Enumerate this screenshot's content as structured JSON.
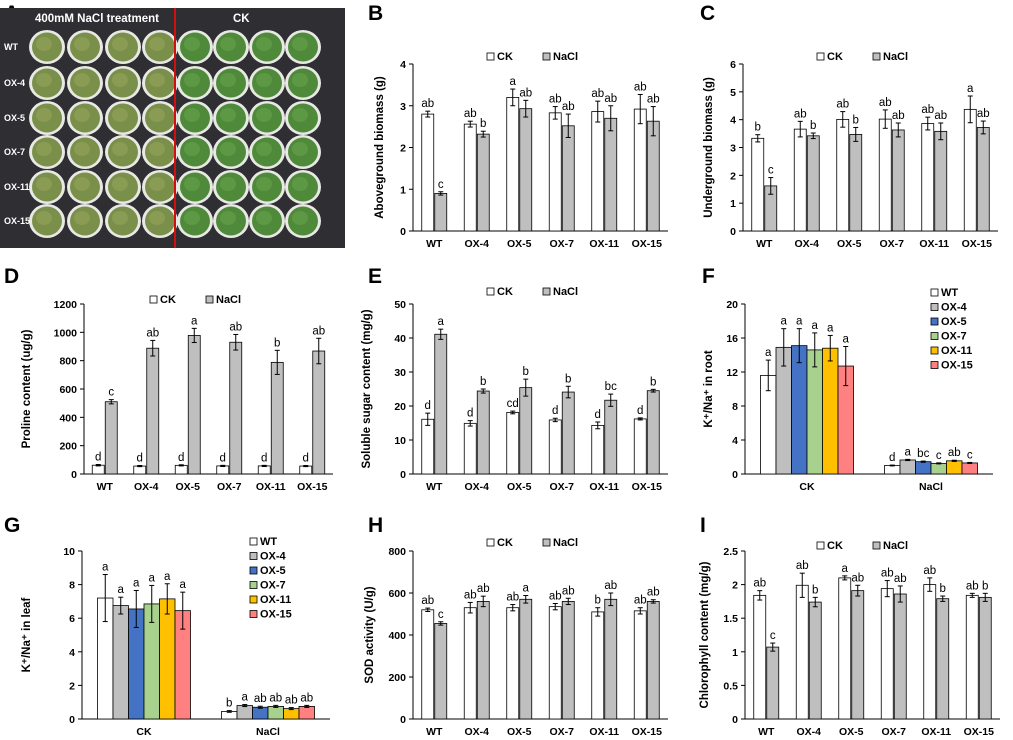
{
  "figure": {
    "panel_a": {
      "label": "A",
      "title_left": "400mM NaCl treatment",
      "title_right": "CK",
      "rows": [
        "WT",
        "OX-4",
        "OX-5",
        "OX-7",
        "OX-11",
        "OX-15"
      ]
    }
  },
  "colors": {
    "ck": "#ffffff",
    "nacl": "#bfbfbf",
    "line_colors": [
      "#ffffff",
      "#bfbfbf",
      "#4472c4",
      "#a9d18e",
      "#ffc000",
      "#ff8080"
    ],
    "photo_bg": "#2e2e33",
    "grass": "#5f8a3f",
    "red_divider": "#d01010"
  },
  "chart_data": [
    {
      "id": "B",
      "label": "B",
      "type": "bar",
      "ylabel": "Aboveground biomass (g)",
      "ylim": [
        0,
        4
      ],
      "yticks": [
        0,
        1,
        2,
        3,
        4
      ],
      "categories": [
        "WT",
        "OX-4",
        "OX-5",
        "OX-7",
        "OX-11",
        "OX-15"
      ],
      "series": [
        {
          "name": "CK",
          "values": [
            2.8,
            2.56,
            3.2,
            2.83,
            2.86,
            2.92
          ],
          "errors": [
            0.07,
            0.07,
            0.2,
            0.15,
            0.25,
            0.35
          ],
          "letters": [
            "ab",
            "ab",
            "a",
            "ab",
            "ab",
            "ab"
          ]
        },
        {
          "name": "NaCl",
          "values": [
            0.9,
            2.32,
            2.93,
            2.52,
            2.7,
            2.63
          ],
          "errors": [
            0.04,
            0.07,
            0.2,
            0.28,
            0.3,
            0.35
          ],
          "letters": [
            "c",
            "b",
            "ab",
            "ab",
            "ab",
            "ab"
          ]
        }
      ]
    },
    {
      "id": "C",
      "label": "C",
      "type": "bar",
      "ylabel": "Underground biomass (g)",
      "ylim": [
        0,
        6
      ],
      "yticks": [
        0,
        1,
        2,
        3,
        4,
        5,
        6
      ],
      "categories": [
        "WT",
        "OX-4",
        "OX-5",
        "OX-7",
        "OX-11",
        "OX-15"
      ],
      "series": [
        {
          "name": "CK",
          "values": [
            3.33,
            3.66,
            4.01,
            4.02,
            3.86,
            4.37
          ],
          "errors": [
            0.13,
            0.28,
            0.28,
            0.33,
            0.23,
            0.48
          ],
          "letters": [
            "b",
            "ab",
            "ab",
            "ab",
            "ab",
            "a"
          ]
        },
        {
          "name": "NaCl",
          "values": [
            1.62,
            3.42,
            3.47,
            3.63,
            3.58,
            3.72
          ],
          "errors": [
            0.3,
            0.1,
            0.25,
            0.25,
            0.3,
            0.23
          ],
          "letters": [
            "c",
            "b",
            "b",
            "ab",
            "ab",
            "ab"
          ]
        }
      ]
    },
    {
      "id": "D",
      "label": "D",
      "type": "bar",
      "ylabel": "Proline content (ug/g)",
      "ylim": [
        0,
        1200
      ],
      "yticks": [
        0,
        200,
        400,
        600,
        800,
        1000,
        1200
      ],
      "categories": [
        "WT",
        "OX-4",
        "OX-5",
        "OX-7",
        "OX-11",
        "OX-15"
      ],
      "series": [
        {
          "name": "CK",
          "values": [
            62,
            56,
            61,
            57,
            57,
            56
          ],
          "errors": [
            5,
            4,
            4,
            4,
            4,
            4
          ],
          "letters": [
            "d",
            "d",
            "d",
            "d",
            "d",
            "d"
          ]
        },
        {
          "name": "NaCl",
          "values": [
            510,
            888,
            978,
            930,
            788,
            868
          ],
          "errors": [
            15,
            55,
            50,
            55,
            85,
            90
          ],
          "letters": [
            "c",
            "ab",
            "a",
            "ab",
            "b",
            "ab"
          ]
        }
      ]
    },
    {
      "id": "E",
      "label": "E",
      "type": "bar",
      "ylabel": "Soluble sugar content (mg/g)",
      "ylim": [
        0,
        50
      ],
      "yticks": [
        0,
        10,
        20,
        30,
        40,
        50
      ],
      "categories": [
        "WT",
        "OX-4",
        "OX-5",
        "OX-7",
        "OX-11",
        "OX-15"
      ],
      "series": [
        {
          "name": "CK",
          "values": [
            16.1,
            14.9,
            18.1,
            15.9,
            14.3,
            16.2
          ],
          "errors": [
            1.8,
            0.8,
            0.4,
            0.5,
            1.0,
            0.3
          ],
          "letters": [
            "d",
            "d",
            "cd",
            "d",
            "d",
            "d"
          ]
        },
        {
          "name": "NaCl",
          "values": [
            41.1,
            24.4,
            25.4,
            24.1,
            21.7,
            24.5
          ],
          "errors": [
            1.5,
            0.6,
            2.5,
            1.7,
            1.8,
            0.4
          ],
          "letters": [
            "a",
            "b",
            "b",
            "b",
            "bc",
            "b"
          ]
        }
      ]
    },
    {
      "id": "F",
      "label": "F",
      "type": "bar",
      "ylabel": "K⁺/Na⁺ in root",
      "ylim": [
        0,
        20
      ],
      "yticks": [
        0,
        4,
        8,
        12,
        16,
        20
      ],
      "categories": [
        "CK",
        "NaCl"
      ],
      "series": [
        {
          "name": "WT",
          "values": [
            11.6,
            1.0
          ],
          "errors": [
            1.8,
            0.05
          ],
          "letters": [
            "a",
            "d"
          ]
        },
        {
          "name": "OX-4",
          "values": [
            14.9,
            1.65
          ],
          "errors": [
            2.2,
            0.07
          ],
          "letters": [
            "a",
            "a"
          ]
        },
        {
          "name": "OX-5",
          "values": [
            15.1,
            1.45
          ],
          "errors": [
            2.0,
            0.07
          ],
          "letters": [
            "a",
            "bc"
          ]
        },
        {
          "name": "OX-7",
          "values": [
            14.6,
            1.25
          ],
          "errors": [
            2.0,
            0.06
          ],
          "letters": [
            "a",
            "c"
          ]
        },
        {
          "name": "OX-11",
          "values": [
            14.8,
            1.55
          ],
          "errors": [
            1.5,
            0.07
          ],
          "letters": [
            "a",
            "ab"
          ]
        },
        {
          "name": "OX-15",
          "values": [
            12.7,
            1.3
          ],
          "errors": [
            2.3,
            0.06
          ],
          "letters": [
            "a",
            "c"
          ]
        }
      ]
    },
    {
      "id": "G",
      "label": "G",
      "type": "bar",
      "ylabel": "K⁺/Na⁺ in leaf",
      "ylim": [
        0,
        10
      ],
      "yticks": [
        0,
        2,
        4,
        6,
        8,
        10
      ],
      "categories": [
        "CK",
        "NaCl"
      ],
      "series": [
        {
          "name": "WT",
          "values": [
            7.2,
            0.45
          ],
          "errors": [
            1.4,
            0.05
          ],
          "letters": [
            "a",
            "b"
          ]
        },
        {
          "name": "OX-4",
          "values": [
            6.75,
            0.8
          ],
          "errors": [
            0.5,
            0.06
          ],
          "letters": [
            "a",
            "a"
          ]
        },
        {
          "name": "OX-5",
          "values": [
            6.55,
            0.7
          ],
          "errors": [
            1.1,
            0.06
          ],
          "letters": [
            "a",
            "ab"
          ]
        },
        {
          "name": "OX-7",
          "values": [
            6.85,
            0.75
          ],
          "errors": [
            1.1,
            0.06
          ],
          "letters": [
            "a",
            "ab"
          ]
        },
        {
          "name": "OX-11",
          "values": [
            7.15,
            0.62
          ],
          "errors": [
            0.9,
            0.06
          ],
          "letters": [
            "a",
            "ab"
          ]
        },
        {
          "name": "OX-15",
          "values": [
            6.45,
            0.75
          ],
          "errors": [
            1.1,
            0.06
          ],
          "letters": [
            "a",
            "ab"
          ]
        }
      ]
    },
    {
      "id": "H",
      "label": "H",
      "type": "bar",
      "ylabel": "SOD activity (U/g)",
      "ylim": [
        0,
        800
      ],
      "yticks": [
        0,
        200,
        400,
        600,
        800
      ],
      "categories": [
        "WT",
        "OX-4",
        "OX-5",
        "OX-7",
        "OX-11",
        "OX-15"
      ],
      "series": [
        {
          "name": "CK",
          "values": [
            520,
            530,
            530,
            535,
            510,
            515
          ],
          "errors": [
            8,
            25,
            15,
            15,
            20,
            15
          ],
          "letters": [
            "ab",
            "ab",
            "ab",
            "ab",
            "b",
            "ab"
          ]
        },
        {
          "name": "NaCl",
          "values": [
            455,
            560,
            570,
            560,
            570,
            560
          ],
          "errors": [
            8,
            25,
            18,
            15,
            30,
            8
          ],
          "letters": [
            "c",
            "ab",
            "a",
            "ab",
            "ab",
            "ab"
          ]
        }
      ]
    },
    {
      "id": "I",
      "label": "I",
      "type": "bar",
      "ylabel": "Chlorophyll content (mg/g)",
      "ylim": [
        0,
        2.5
      ],
      "yticks": [
        0,
        0.5,
        1,
        1.5,
        2,
        2.5
      ],
      "categories": [
        "WT",
        "OX-4",
        "OX-5",
        "OX-7",
        "OX-11",
        "OX-15"
      ],
      "series": [
        {
          "name": "CK",
          "values": [
            1.84,
            1.99,
            2.1,
            1.94,
            2.0,
            1.84
          ],
          "errors": [
            0.07,
            0.18,
            0.03,
            0.12,
            0.1,
            0.03
          ],
          "letters": [
            "ab",
            "ab",
            "a",
            "ab",
            "ab",
            "ab"
          ]
        },
        {
          "name": "NaCl",
          "values": [
            1.07,
            1.74,
            1.91,
            1.86,
            1.79,
            1.81
          ],
          "errors": [
            0.06,
            0.07,
            0.08,
            0.12,
            0.04,
            0.06
          ],
          "letters": [
            "c",
            "b",
            "ab",
            "ab",
            "b",
            "b"
          ]
        }
      ]
    }
  ]
}
